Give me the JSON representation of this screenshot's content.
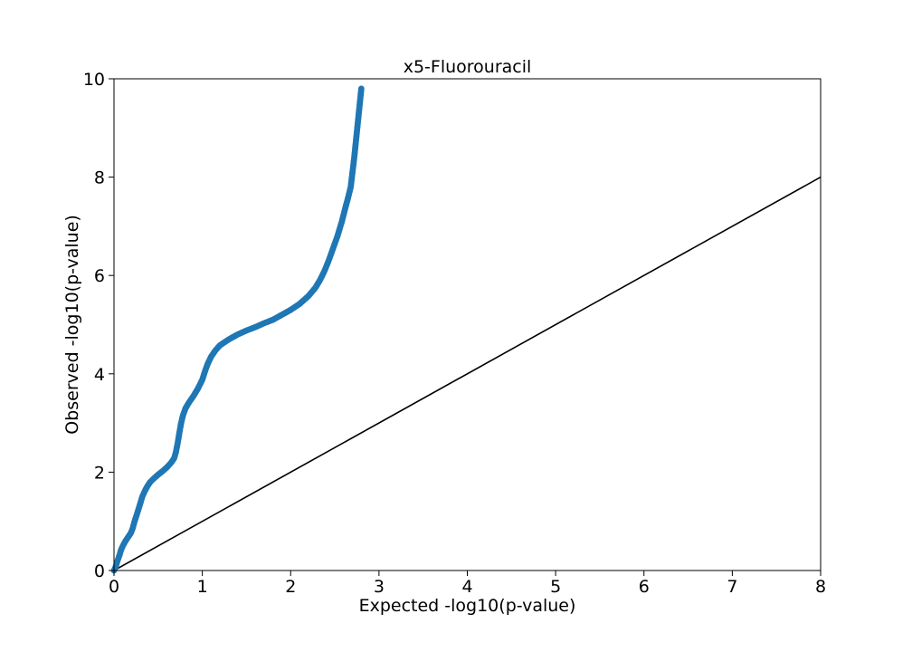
{
  "chart_data": {
    "type": "scatter",
    "title": "x5-Fluorouracil",
    "xlabel": "Expected -log10(p-value)",
    "ylabel": "Observed -log10(p-value)",
    "xlim": [
      0,
      8
    ],
    "ylim": [
      0,
      10
    ],
    "xticks": [
      "0",
      "1",
      "2",
      "3",
      "4",
      "5",
      "6",
      "7",
      "8"
    ],
    "yticks": [
      "0",
      "2",
      "4",
      "6",
      "8",
      "10"
    ],
    "grid": false,
    "reference_line": {
      "x": [
        0,
        8
      ],
      "y": [
        0,
        8
      ],
      "color": "#000000"
    },
    "series": [
      {
        "color": "#1f77b4",
        "points": [
          [
            0.0,
            0.0
          ],
          [
            0.02,
            0.08
          ],
          [
            0.04,
            0.2
          ],
          [
            0.06,
            0.3
          ],
          [
            0.08,
            0.42
          ],
          [
            0.1,
            0.5
          ],
          [
            0.13,
            0.6
          ],
          [
            0.16,
            0.68
          ],
          [
            0.19,
            0.76
          ],
          [
            0.21,
            0.85
          ],
          [
            0.23,
            0.98
          ],
          [
            0.26,
            1.15
          ],
          [
            0.29,
            1.32
          ],
          [
            0.32,
            1.5
          ],
          [
            0.35,
            1.62
          ],
          [
            0.38,
            1.72
          ],
          [
            0.41,
            1.8
          ],
          [
            0.45,
            1.87
          ],
          [
            0.5,
            1.95
          ],
          [
            0.55,
            2.02
          ],
          [
            0.6,
            2.1
          ],
          [
            0.65,
            2.2
          ],
          [
            0.68,
            2.28
          ],
          [
            0.7,
            2.4
          ],
          [
            0.72,
            2.58
          ],
          [
            0.74,
            2.8
          ],
          [
            0.76,
            3.0
          ],
          [
            0.78,
            3.15
          ],
          [
            0.81,
            3.3
          ],
          [
            0.85,
            3.42
          ],
          [
            0.9,
            3.55
          ],
          [
            0.95,
            3.7
          ],
          [
            1.0,
            3.88
          ],
          [
            1.03,
            4.05
          ],
          [
            1.06,
            4.2
          ],
          [
            1.1,
            4.35
          ],
          [
            1.15,
            4.48
          ],
          [
            1.2,
            4.58
          ],
          [
            1.3,
            4.7
          ],
          [
            1.4,
            4.8
          ],
          [
            1.5,
            4.88
          ],
          [
            1.6,
            4.95
          ],
          [
            1.7,
            5.03
          ],
          [
            1.8,
            5.1
          ],
          [
            1.9,
            5.2
          ],
          [
            2.0,
            5.3
          ],
          [
            2.1,
            5.42
          ],
          [
            2.2,
            5.58
          ],
          [
            2.28,
            5.75
          ],
          [
            2.33,
            5.9
          ],
          [
            2.38,
            6.08
          ],
          [
            2.43,
            6.3
          ],
          [
            2.48,
            6.55
          ],
          [
            2.53,
            6.8
          ],
          [
            2.58,
            7.1
          ],
          [
            2.62,
            7.38
          ],
          [
            2.65,
            7.58
          ],
          [
            2.68,
            7.8
          ],
          [
            2.7,
            8.1
          ],
          [
            2.72,
            8.4
          ],
          [
            2.74,
            8.75
          ],
          [
            2.76,
            9.1
          ],
          [
            2.78,
            9.45
          ],
          [
            2.8,
            9.8
          ]
        ]
      }
    ]
  }
}
